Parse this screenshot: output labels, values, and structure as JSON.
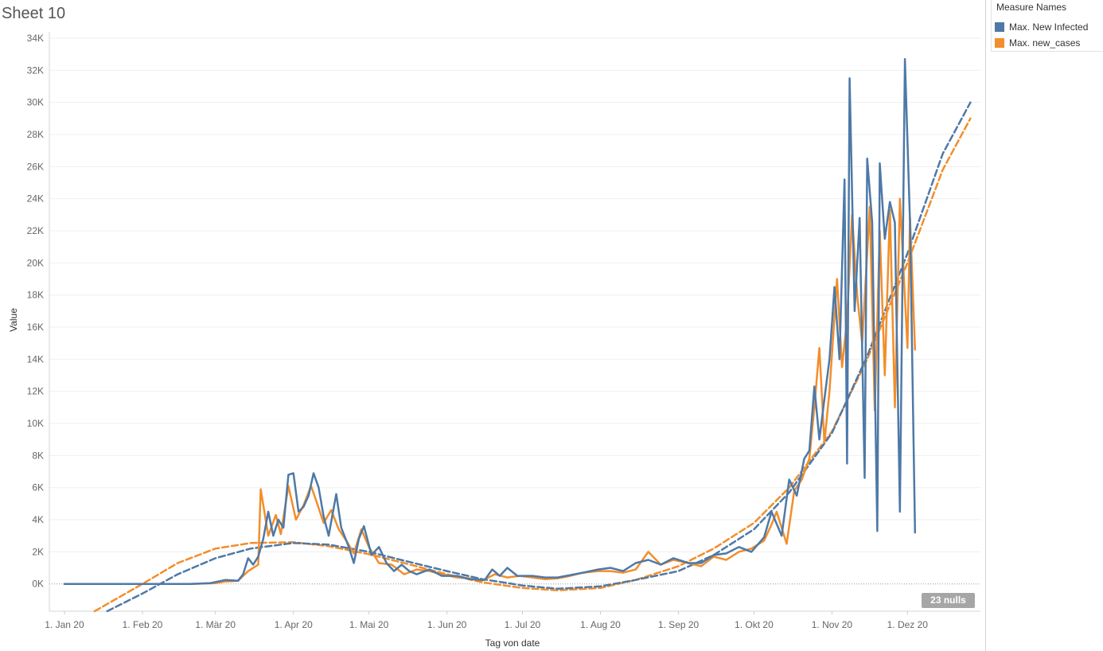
{
  "sheet": {
    "title": "Sheet 10",
    "nulls_label": "23 nulls"
  },
  "legend": {
    "title": "Measure Names",
    "items": [
      {
        "label": "Max. New Infected",
        "color": "#4e79a7"
      },
      {
        "label": "Max. new_cases",
        "color": "#f28e2b"
      }
    ]
  },
  "chart_data": {
    "type": "line",
    "title": "Sheet 10",
    "xlabel": "Tag von date",
    "ylabel": "Value",
    "x_ticks": [
      "2020-01-01",
      "2020-02-01",
      "2020-03-01",
      "2020-04-01",
      "2020-05-01",
      "2020-06-01",
      "2020-07-01",
      "2020-08-01",
      "2020-09-01",
      "2020-10-01",
      "2020-11-01",
      "2020-12-01"
    ],
    "x_tick_labels": [
      "1. Jan 20",
      "1. Feb 20",
      "1. Mär 20",
      "1. Apr 20",
      "1. Mai 20",
      "1. Jun 20",
      "1. Jul 20",
      "1. Aug 20",
      "1. Sep 20",
      "1. Okt 20",
      "1. Nov 20",
      "1. Dez 20"
    ],
    "xlim": [
      "2019-12-26",
      "2020-12-30"
    ],
    "ylim": [
      -1700,
      34000
    ],
    "y_ticks": [
      0,
      2000,
      4000,
      6000,
      8000,
      10000,
      12000,
      14000,
      16000,
      18000,
      20000,
      22000,
      24000,
      26000,
      28000,
      30000,
      32000,
      34000
    ],
    "y_tick_labels": [
      "0K",
      "2K",
      "4K",
      "6K",
      "8K",
      "10K",
      "12K",
      "14K",
      "16K",
      "18K",
      "20K",
      "22K",
      "24K",
      "26K",
      "28K",
      "30K",
      "32K",
      "34K"
    ],
    "grid": true,
    "legend_position": "right",
    "series": [
      {
        "name": "Max. New Infected",
        "color": "#4e79a7",
        "points": [
          [
            "2020-01-01",
            0
          ],
          [
            "2020-02-01",
            0
          ],
          [
            "2020-02-20",
            0
          ],
          [
            "2020-02-28",
            50
          ],
          [
            "2020-03-05",
            250
          ],
          [
            "2020-03-10",
            200
          ],
          [
            "2020-03-12",
            600
          ],
          [
            "2020-03-14",
            1600
          ],
          [
            "2020-03-16",
            1200
          ],
          [
            "2020-03-18",
            1700
          ],
          [
            "2020-03-20",
            2800
          ],
          [
            "2020-03-22",
            4500
          ],
          [
            "2020-03-24",
            3000
          ],
          [
            "2020-03-26",
            4000
          ],
          [
            "2020-03-28",
            3500
          ],
          [
            "2020-03-30",
            6800
          ],
          [
            "2020-04-01",
            6900
          ],
          [
            "2020-04-03",
            4500
          ],
          [
            "2020-04-05",
            4800
          ],
          [
            "2020-04-07",
            5500
          ],
          [
            "2020-04-09",
            6900
          ],
          [
            "2020-04-11",
            6000
          ],
          [
            "2020-04-13",
            4200
          ],
          [
            "2020-04-15",
            3000
          ],
          [
            "2020-04-18",
            5600
          ],
          [
            "2020-04-20",
            3500
          ],
          [
            "2020-04-23",
            2300
          ],
          [
            "2020-04-25",
            1300
          ],
          [
            "2020-04-27",
            2800
          ],
          [
            "2020-04-29",
            3600
          ],
          [
            "2020-05-02",
            1800
          ],
          [
            "2020-05-05",
            2300
          ],
          [
            "2020-05-08",
            1300
          ],
          [
            "2020-05-11",
            800
          ],
          [
            "2020-05-14",
            1200
          ],
          [
            "2020-05-17",
            800
          ],
          [
            "2020-05-20",
            600
          ],
          [
            "2020-05-25",
            900
          ],
          [
            "2020-05-30",
            500
          ],
          [
            "2020-06-05",
            500
          ],
          [
            "2020-06-10",
            300
          ],
          [
            "2020-06-16",
            250
          ],
          [
            "2020-06-19",
            900
          ],
          [
            "2020-06-22",
            500
          ],
          [
            "2020-06-25",
            1000
          ],
          [
            "2020-06-29",
            500
          ],
          [
            "2020-07-05",
            500
          ],
          [
            "2020-07-10",
            400
          ],
          [
            "2020-07-15",
            400
          ],
          [
            "2020-07-20",
            550
          ],
          [
            "2020-07-25",
            700
          ],
          [
            "2020-07-31",
            900
          ],
          [
            "2020-08-05",
            1000
          ],
          [
            "2020-08-10",
            800
          ],
          [
            "2020-08-15",
            1300
          ],
          [
            "2020-08-20",
            1500
          ],
          [
            "2020-08-25",
            1200
          ],
          [
            "2020-08-30",
            1600
          ],
          [
            "2020-09-05",
            1300
          ],
          [
            "2020-09-10",
            1300
          ],
          [
            "2020-09-15",
            1800
          ],
          [
            "2020-09-20",
            1900
          ],
          [
            "2020-09-25",
            2300
          ],
          [
            "2020-09-30",
            2000
          ],
          [
            "2020-10-05",
            2900
          ],
          [
            "2020-10-08",
            4500
          ],
          [
            "2020-10-12",
            3000
          ],
          [
            "2020-10-15",
            6500
          ],
          [
            "2020-10-18",
            5500
          ],
          [
            "2020-10-21",
            7800
          ],
          [
            "2020-10-23",
            8300
          ],
          [
            "2020-10-25",
            12300
          ],
          [
            "2020-10-27",
            9000
          ],
          [
            "2020-10-29",
            11500
          ],
          [
            "2020-10-31",
            14000
          ],
          [
            "2020-11-02",
            18500
          ],
          [
            "2020-11-04",
            14000
          ],
          [
            "2020-11-06",
            25200
          ],
          [
            "2020-11-07",
            7500
          ],
          [
            "2020-11-08",
            31500
          ],
          [
            "2020-11-10",
            17000
          ],
          [
            "2020-11-12",
            22800
          ],
          [
            "2020-11-14",
            6600
          ],
          [
            "2020-11-15",
            26500
          ],
          [
            "2020-11-17",
            22500
          ],
          [
            "2020-11-19",
            3300
          ],
          [
            "2020-11-20",
            26200
          ],
          [
            "2020-11-22",
            21500
          ],
          [
            "2020-11-24",
            23800
          ],
          [
            "2020-11-26",
            22500
          ],
          [
            "2020-11-28",
            4500
          ],
          [
            "2020-11-30",
            32700
          ],
          [
            "2020-12-02",
            22500
          ],
          [
            "2020-12-04",
            3200
          ]
        ],
        "trend": [
          [
            "2020-01-18",
            -1700
          ],
          [
            "2020-02-01",
            -600
          ],
          [
            "2020-02-15",
            600
          ],
          [
            "2020-03-01",
            1600
          ],
          [
            "2020-03-15",
            2200
          ],
          [
            "2020-04-01",
            2550
          ],
          [
            "2020-04-15",
            2450
          ],
          [
            "2020-05-01",
            2000
          ],
          [
            "2020-05-15",
            1450
          ],
          [
            "2020-06-01",
            800
          ],
          [
            "2020-06-15",
            300
          ],
          [
            "2020-07-01",
            -100
          ],
          [
            "2020-07-15",
            -300
          ],
          [
            "2020-08-01",
            -150
          ],
          [
            "2020-08-15",
            250
          ],
          [
            "2020-09-01",
            800
          ],
          [
            "2020-09-15",
            1800
          ],
          [
            "2020-10-01",
            3400
          ],
          [
            "2020-10-15",
            5700
          ],
          [
            "2020-11-01",
            9400
          ],
          [
            "2020-11-15",
            14200
          ],
          [
            "2020-12-01",
            20600
          ],
          [
            "2020-12-15",
            26800
          ],
          [
            "2020-12-26",
            30000
          ]
        ]
      },
      {
        "name": "Max. new_cases",
        "color": "#f28e2b",
        "points": [
          [
            "2020-01-01",
            0
          ],
          [
            "2020-02-01",
            0
          ],
          [
            "2020-02-20",
            0
          ],
          [
            "2020-03-01",
            50
          ],
          [
            "2020-03-05",
            150
          ],
          [
            "2020-03-10",
            200
          ],
          [
            "2020-03-14",
            800
          ],
          [
            "2020-03-18",
            1200
          ],
          [
            "2020-03-19",
            5900
          ],
          [
            "2020-03-22",
            3000
          ],
          [
            "2020-03-25",
            4300
          ],
          [
            "2020-03-27",
            3100
          ],
          [
            "2020-03-30",
            6100
          ],
          [
            "2020-04-02",
            4000
          ],
          [
            "2020-04-05",
            4900
          ],
          [
            "2020-04-08",
            6100
          ],
          [
            "2020-04-10",
            5200
          ],
          [
            "2020-04-13",
            3800
          ],
          [
            "2020-04-16",
            4600
          ],
          [
            "2020-04-19",
            3400
          ],
          [
            "2020-04-22",
            2700
          ],
          [
            "2020-04-25",
            1900
          ],
          [
            "2020-04-28",
            3400
          ],
          [
            "2020-05-01",
            2300
          ],
          [
            "2020-05-05",
            1300
          ],
          [
            "2020-05-10",
            1200
          ],
          [
            "2020-05-15",
            600
          ],
          [
            "2020-05-20",
            900
          ],
          [
            "2020-05-25",
            800
          ],
          [
            "2020-05-30",
            600
          ],
          [
            "2020-06-05",
            400
          ],
          [
            "2020-06-10",
            350
          ],
          [
            "2020-06-15",
            200
          ],
          [
            "2020-06-20",
            600
          ],
          [
            "2020-06-25",
            400
          ],
          [
            "2020-06-30",
            500
          ],
          [
            "2020-07-05",
            400
          ],
          [
            "2020-07-10",
            300
          ],
          [
            "2020-07-15",
            350
          ],
          [
            "2020-07-20",
            500
          ],
          [
            "2020-07-25",
            700
          ],
          [
            "2020-07-31",
            800
          ],
          [
            "2020-08-05",
            800
          ],
          [
            "2020-08-10",
            700
          ],
          [
            "2020-08-15",
            900
          ],
          [
            "2020-08-20",
            2000
          ],
          [
            "2020-08-25",
            1200
          ],
          [
            "2020-08-30",
            1500
          ],
          [
            "2020-09-05",
            1300
          ],
          [
            "2020-09-10",
            1100
          ],
          [
            "2020-09-15",
            1700
          ],
          [
            "2020-09-20",
            1500
          ],
          [
            "2020-09-25",
            2000
          ],
          [
            "2020-09-30",
            2200
          ],
          [
            "2020-10-05",
            2700
          ],
          [
            "2020-10-08",
            3700
          ],
          [
            "2020-10-10",
            4500
          ],
          [
            "2020-10-14",
            2500
          ],
          [
            "2020-10-17",
            5800
          ],
          [
            "2020-10-20",
            6500
          ],
          [
            "2020-10-23",
            7800
          ],
          [
            "2020-10-25",
            11000
          ],
          [
            "2020-10-27",
            14700
          ],
          [
            "2020-10-29",
            8800
          ],
          [
            "2020-10-31",
            12000
          ],
          [
            "2020-11-03",
            19000
          ],
          [
            "2020-11-05",
            13500
          ],
          [
            "2020-11-07",
            16500
          ],
          [
            "2020-11-09",
            23000
          ],
          [
            "2020-11-11",
            18000
          ],
          [
            "2020-11-13",
            15000
          ],
          [
            "2020-11-16",
            23500
          ],
          [
            "2020-11-18",
            10800
          ],
          [
            "2020-11-20",
            22000
          ],
          [
            "2020-11-22",
            13000
          ],
          [
            "2020-11-24",
            23300
          ],
          [
            "2020-11-26",
            11000
          ],
          [
            "2020-11-28",
            24000
          ],
          [
            "2020-12-01",
            14700
          ],
          [
            "2020-12-02",
            22800
          ],
          [
            "2020-12-04",
            14600
          ]
        ],
        "trend": [
          [
            "2020-01-13",
            -1700
          ],
          [
            "2020-02-01",
            0
          ],
          [
            "2020-02-15",
            1300
          ],
          [
            "2020-03-01",
            2200
          ],
          [
            "2020-03-15",
            2550
          ],
          [
            "2020-04-01",
            2600
          ],
          [
            "2020-04-15",
            2350
          ],
          [
            "2020-05-01",
            1850
          ],
          [
            "2020-05-15",
            1300
          ],
          [
            "2020-06-01",
            600
          ],
          [
            "2020-06-15",
            100
          ],
          [
            "2020-07-01",
            -250
          ],
          [
            "2020-07-15",
            -400
          ],
          [
            "2020-08-01",
            -250
          ],
          [
            "2020-08-15",
            250
          ],
          [
            "2020-09-01",
            1100
          ],
          [
            "2020-09-15",
            2200
          ],
          [
            "2020-10-01",
            3800
          ],
          [
            "2020-10-15",
            6000
          ],
          [
            "2020-11-01",
            9500
          ],
          [
            "2020-11-15",
            14000
          ],
          [
            "2020-12-01",
            20000
          ],
          [
            "2020-12-15",
            25800
          ],
          [
            "2020-12-26",
            29000
          ]
        ]
      }
    ]
  }
}
